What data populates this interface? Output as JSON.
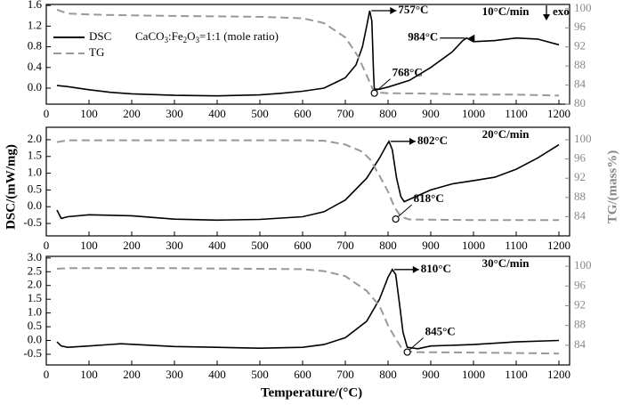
{
  "xlabel": "Temperature/(°C)",
  "ylabel": "DSC/(mW/mg)",
  "y2label": "TG/(mass%)",
  "chart_data": [
    {
      "type": "line",
      "rate": "10°C/min",
      "direction": "exo",
      "legend": true,
      "legend_note": [
        "CaCO",
        "3",
        ":Fe",
        "2",
        "O",
        "3",
        "=1:1 (mole ratio)"
      ],
      "xlim": [
        0,
        1225
      ],
      "xticks": [
        0,
        100,
        200,
        300,
        400,
        500,
        600,
        700,
        800,
        900,
        1000,
        1100,
        1200
      ],
      "ylim": [
        -0.31,
        1.62
      ],
      "yticks": [
        {
          "value": 0,
          "label": "0.0"
        },
        0.4,
        0.8,
        1.2,
        1.6
      ],
      "y2lim": [
        80,
        100.9
      ],
      "y2ticks": [
        80,
        84,
        88,
        92,
        96,
        100
      ],
      "series": [
        {
          "name": "DSC",
          "color": "#000000",
          "dash": false,
          "x": [
            25,
            50,
            100,
            150,
            200,
            300,
            400,
            500,
            550,
            600,
            650,
            700,
            725,
            740,
            750,
            757,
            762,
            766,
            768,
            780,
            800,
            850,
            900,
            950,
            975,
            984,
            1000,
            1050,
            1100,
            1150,
            1200
          ],
          "values": [
            0.05,
            0.03,
            -0.03,
            -0.08,
            -0.11,
            -0.14,
            -0.15,
            -0.13,
            -0.1,
            -0.06,
            0.0,
            0.2,
            0.45,
            0.8,
            1.2,
            1.5,
            1.3,
            0.3,
            -0.02,
            -0.02,
            0.02,
            0.15,
            0.4,
            0.7,
            0.92,
            0.97,
            0.9,
            0.92,
            0.97,
            0.95,
            0.84
          ]
        },
        {
          "name": "TG",
          "color": "#999999",
          "dash": true,
          "axis": "y2",
          "x": [
            25,
            50,
            100,
            200,
            300,
            400,
            500,
            600,
            650,
            700,
            730,
            750,
            765,
            780,
            800,
            900,
            1000,
            1100,
            1200
          ],
          "values": [
            99.8,
            99.0,
            98.8,
            98.6,
            98.5,
            98.4,
            98.3,
            98.0,
            97.0,
            94.0,
            90.0,
            86.0,
            83.0,
            82.4,
            82.3,
            82.2,
            82.0,
            82.0,
            81.8
          ]
        }
      ],
      "annotations": [
        {
          "text": "757°C",
          "x": 757,
          "y": 1.5,
          "kind": "peak",
          "side": "right"
        },
        {
          "text": "984°C",
          "x": 984,
          "y": 0.97,
          "kind": "peak",
          "side": "left"
        },
        {
          "text": "768°C",
          "x": 768,
          "y": 82.3,
          "kind": "point",
          "axis": "y2"
        }
      ]
    },
    {
      "type": "line",
      "rate": "20°C/min",
      "legend": false,
      "xlim": [
        0,
        1225
      ],
      "xticks": [
        0,
        100,
        200,
        300,
        400,
        500,
        600,
        700,
        800,
        900,
        1000,
        1100,
        1200
      ],
      "ylim": [
        -0.87,
        2.37
      ],
      "yticks": [
        -0.5,
        {
          "value": 0,
          "label": "0.0"
        },
        0.5,
        {
          "value": 1,
          "label": "1.0"
        },
        1.5,
        {
          "value": 2,
          "label": "2.0"
        }
      ],
      "y2lim": [
        80,
        102.6
      ],
      "y2ticks": [
        84,
        88,
        92,
        96,
        100
      ],
      "series": [
        {
          "color": "#000000",
          "dash": false,
          "x": [
            25,
            35,
            50,
            100,
            200,
            300,
            400,
            500,
            600,
            650,
            700,
            750,
            780,
            795,
            802,
            810,
            820,
            830,
            838,
            850,
            900,
            950,
            1000,
            1050,
            1100,
            1150,
            1200
          ],
          "values": [
            -0.1,
            -0.35,
            -0.3,
            -0.24,
            -0.27,
            -0.37,
            -0.4,
            -0.38,
            -0.3,
            -0.15,
            0.2,
            0.85,
            1.45,
            1.8,
            1.95,
            1.7,
            0.85,
            0.3,
            0.15,
            0.22,
            0.5,
            0.68,
            0.78,
            0.88,
            1.12,
            1.45,
            1.85
          ]
        },
        {
          "color": "#999999",
          "dash": true,
          "axis": "y2",
          "x": [
            25,
            50,
            100,
            300,
            600,
            650,
            700,
            740,
            760,
            780,
            800,
            815,
            830,
            850,
            1000,
            1200
          ],
          "values": [
            99.5,
            99.9,
            99.9,
            99.9,
            99.9,
            99.8,
            99.0,
            97.5,
            95.7,
            92.5,
            89.2,
            86.0,
            84.0,
            83.4,
            83.3,
            83.3
          ]
        }
      ],
      "annotations": [
        {
          "text": "802°C",
          "x": 802,
          "y": 1.95,
          "kind": "peak",
          "side": "right"
        },
        {
          "text": "818°C",
          "x": 818,
          "y": 83.5,
          "kind": "point",
          "axis": "y2"
        }
      ]
    },
    {
      "type": "line",
      "rate": "30°C/min",
      "legend": false,
      "xlim": [
        0,
        1225
      ],
      "xticks": [
        0,
        100,
        200,
        300,
        400,
        500,
        600,
        700,
        800,
        900,
        1000,
        1100,
        1200
      ],
      "ylim": [
        -0.89,
        3.06
      ],
      "yticks": [
        -0.5,
        {
          "value": 0,
          "label": "0.0"
        },
        0.5,
        {
          "value": 1,
          "label": "1.0"
        },
        1.5,
        {
          "value": 2,
          "label": "2.0"
        },
        2.5,
        {
          "value": 3,
          "label": "3.0"
        }
      ],
      "y2lim": [
        80,
        102
      ],
      "y2ticks": [
        84,
        88,
        92,
        96,
        100
      ],
      "series": [
        {
          "color": "#000000",
          "dash": false,
          "x": [
            25,
            35,
            50,
            100,
            175,
            250,
            300,
            400,
            500,
            600,
            650,
            700,
            750,
            780,
            800,
            810,
            818,
            828,
            835,
            845,
            870,
            900,
            1000,
            1100,
            1200
          ],
          "values": [
            -0.05,
            -0.2,
            -0.25,
            -0.2,
            -0.12,
            -0.18,
            -0.22,
            -0.25,
            -0.28,
            -0.25,
            -0.15,
            0.1,
            0.7,
            1.5,
            2.3,
            2.58,
            2.4,
            1.2,
            0.3,
            -0.25,
            -0.3,
            -0.2,
            -0.15,
            -0.05,
            0.0
          ]
        },
        {
          "color": "#999999",
          "dash": true,
          "axis": "y2",
          "x": [
            25,
            50,
            300,
            600,
            650,
            700,
            750,
            780,
            800,
            820,
            835,
            860,
            1000,
            1200
          ],
          "values": [
            99.5,
            99.6,
            99.6,
            99.4,
            99.0,
            98.0,
            95.0,
            92.0,
            88.0,
            85.0,
            83.0,
            82.6,
            82.5,
            82.3
          ]
        }
      ],
      "annotations": [
        {
          "text": "810°C",
          "x": 810,
          "y": 2.58,
          "kind": "peak",
          "side": "right"
        },
        {
          "text": "845°C",
          "x": 845,
          "y": 82.6,
          "kind": "point",
          "axis": "y2"
        }
      ]
    }
  ]
}
